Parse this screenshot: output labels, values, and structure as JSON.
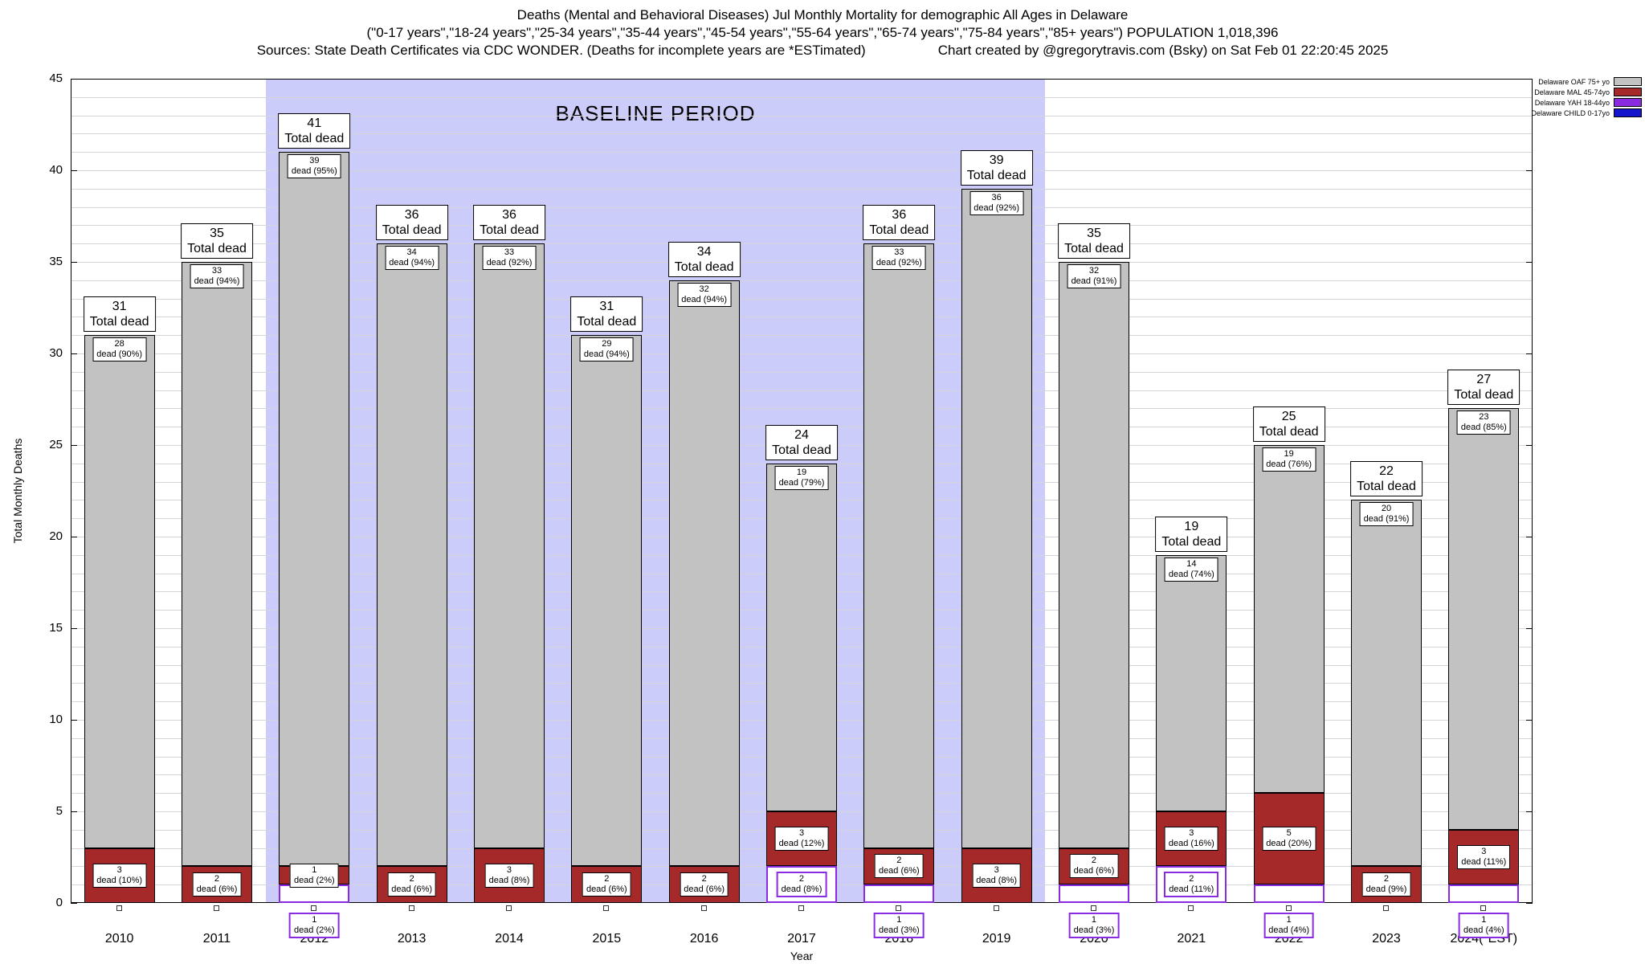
{
  "chart_data": {
    "type": "bar",
    "stacked": true,
    "title": "Deaths (Mental and Behavioral Diseases) Jul Monthly Mortality for demographic All Ages in Delaware",
    "subtitle": "(\"0-17 years\",\"18-24 years\",\"25-34 years\",\"35-44 years\",\"45-54 years\",\"55-64 years\",\"65-74 years\",\"75-84 years\",\"85+ years\") POPULATION 1,018,396",
    "source_note": "Sources: State Death Certificates via CDC WONDER. (Deaths for incomplete years are *ESTimated)",
    "credit_note": "Chart created by @gregorytravis.com (Bsky) on Sat Feb 01 22:20:45 2025",
    "xlabel": "Year",
    "ylabel": "Total Monthly Deaths",
    "ylim": [
      0,
      45
    ],
    "yticks": [
      0,
      5,
      10,
      15,
      20,
      25,
      30,
      35,
      40,
      45
    ],
    "grid": true,
    "legend_position": "top-right",
    "categories": [
      "2010",
      "2011",
      "2012",
      "2013",
      "2014",
      "2015",
      "2016",
      "2017",
      "2018",
      "2019",
      "2020",
      "2021",
      "2022",
      "2023",
      "2024(*EST)"
    ],
    "totals": [
      31,
      35,
      41,
      36,
      36,
      31,
      34,
      24,
      36,
      39,
      35,
      19,
      25,
      22,
      27
    ],
    "series": [
      {
        "key": "oaf",
        "name": "Delaware OAF 75+ yo",
        "color": "#c2c2c2",
        "border": "#000000",
        "values": [
          28,
          33,
          39,
          34,
          33,
          29,
          32,
          19,
          33,
          36,
          32,
          14,
          19,
          20,
          23
        ],
        "pct": [
          90,
          94,
          95,
          94,
          92,
          94,
          94,
          79,
          92,
          92,
          91,
          74,
          76,
          91,
          85
        ]
      },
      {
        "key": "mal",
        "name": "Delaware MAL 45-74yo",
        "color": "#a62929",
        "border": "#000000",
        "values": [
          3,
          2,
          1,
          2,
          3,
          2,
          2,
          3,
          2,
          3,
          2,
          3,
          5,
          2,
          3
        ],
        "pct": [
          10,
          6,
          2,
          6,
          8,
          6,
          6,
          12,
          6,
          8,
          6,
          16,
          20,
          9,
          11
        ]
      },
      {
        "key": "yah",
        "name": "Delaware YAH 18-44yo",
        "color": "#8a2be2",
        "border": "#8a2be2",
        "values": [
          0,
          0,
          1,
          0,
          0,
          0,
          0,
          2,
          1,
          0,
          1,
          2,
          1,
          0,
          1
        ],
        "pct": [
          null,
          null,
          2,
          null,
          null,
          null,
          null,
          8,
          3,
          null,
          3,
          11,
          4,
          null,
          4
        ]
      },
      {
        "key": "child",
        "name": "Delaware CHILD 0-17yo",
        "color": "#1414cc",
        "border": "#1414cc",
        "values": [
          0,
          0,
          0,
          0,
          0,
          0,
          0,
          0,
          0,
          0,
          0,
          0,
          0,
          0,
          0
        ],
        "pct": [
          null,
          null,
          null,
          null,
          null,
          null,
          null,
          null,
          null,
          null,
          null,
          null,
          null,
          null,
          null
        ]
      }
    ],
    "legend": [
      {
        "label": "Delaware OAF 75+ yo",
        "color": "#c2c2c2"
      },
      {
        "label": "Delaware MAL 45-74yo",
        "color": "#a62929"
      },
      {
        "label": "Delaware YAH 18-44yo",
        "color": "#8a2be2"
      },
      {
        "label": "Delaware CHILD 0-17yo",
        "color": "#1414cc"
      }
    ],
    "baseline_period": {
      "label": "BASELINE PERIOD",
      "from": "2012",
      "to": "2019",
      "from_index": 2,
      "to_index": 9,
      "color": "#ccccfa"
    },
    "labels": {
      "total_suffix": "Total dead",
      "dead_fmt": "dead ({pct}%)"
    }
  }
}
